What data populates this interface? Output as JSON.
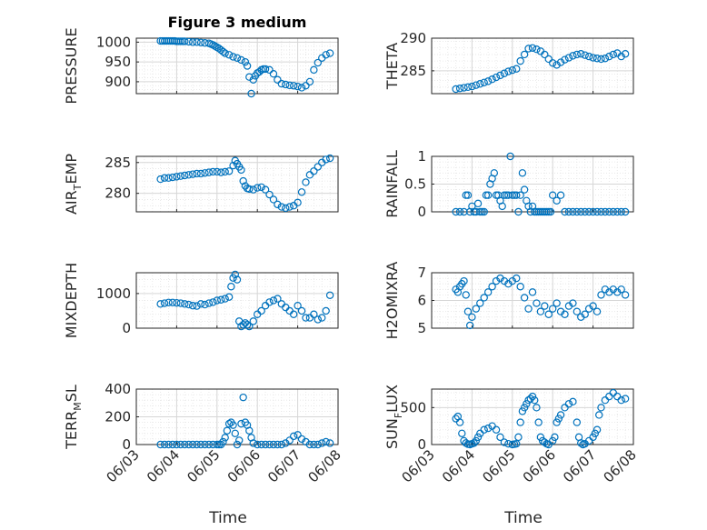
{
  "chart_data": [
    {
      "type": "scatter",
      "title": "Figure 3 medium",
      "ylabel": "PRESSURE",
      "xlim": [
        "06/03",
        "06/08"
      ],
      "ylim": [
        870,
        1010
      ],
      "yticks": [
        900,
        950,
        1000
      ],
      "xticklabels": [],
      "xlabel": "",
      "series": [
        {
          "x": [
            0.6,
            0.65,
            0.7,
            0.75,
            0.8,
            0.85,
            0.9,
            0.95,
            1.0,
            1.05,
            1.1,
            1.15,
            1.2,
            1.3,
            1.4,
            1.5,
            1.6,
            1.7,
            1.8,
            1.85,
            1.9,
            1.95,
            2.0,
            2.05,
            2.1,
            2.15,
            2.2,
            2.3,
            2.4,
            2.5,
            2.6,
            2.7,
            2.75,
            2.8,
            2.85,
            2.9,
            2.95,
            3.0,
            3.05,
            3.1,
            3.15,
            3.2,
            3.3,
            3.4,
            3.5,
            3.6,
            3.7,
            3.8,
            3.9,
            4.0,
            4.1,
            4.2,
            4.3,
            4.4,
            4.5,
            4.6,
            4.7,
            4.8
          ],
          "y": [
            1003,
            1003,
            1003,
            1003,
            1003,
            1003,
            1003,
            1003,
            1002,
            1002,
            1002,
            1002,
            1002,
            1001,
            1000,
            1000,
            999,
            998,
            997,
            995,
            993,
            990,
            987,
            984,
            980,
            976,
            972,
            968,
            963,
            960,
            955,
            950,
            940,
            912,
            870,
            905,
            915,
            922,
            925,
            930,
            932,
            932,
            930,
            920,
            905,
            895,
            893,
            891,
            890,
            888,
            885,
            890,
            900,
            930,
            948,
            960,
            968,
            972
          ]
        }
      ]
    },
    {
      "type": "scatter",
      "ylabel": "THETA",
      "xlim": [
        "06/03",
        "06/08"
      ],
      "ylim": [
        281.5,
        290
      ],
      "yticks": [
        285,
        290
      ],
      "xticklabels": [],
      "xlabel": "",
      "series": [
        {
          "x": [
            0.6,
            0.7,
            0.8,
            0.9,
            1.0,
            1.1,
            1.2,
            1.3,
            1.4,
            1.5,
            1.6,
            1.7,
            1.8,
            1.9,
            2.0,
            2.1,
            2.2,
            2.3,
            2.4,
            2.5,
            2.6,
            2.7,
            2.8,
            2.9,
            3.0,
            3.1,
            3.2,
            3.3,
            3.4,
            3.5,
            3.6,
            3.7,
            3.8,
            3.9,
            4.0,
            4.1,
            4.2,
            4.3,
            4.4,
            4.5,
            4.6,
            4.7,
            4.8
          ],
          "y": [
            282.2,
            282.3,
            282.4,
            282.5,
            282.6,
            282.8,
            283.0,
            283.2,
            283.4,
            283.7,
            284.0,
            284.3,
            284.6,
            284.9,
            285.1,
            285.3,
            286.5,
            287.5,
            288.4,
            288.5,
            288.3,
            288.0,
            287.5,
            286.8,
            286.2,
            285.9,
            286.3,
            286.7,
            287.0,
            287.3,
            287.5,
            287.6,
            287.4,
            287.2,
            287.0,
            286.9,
            286.8,
            286.9,
            287.2,
            287.5,
            287.7,
            287.2,
            287.6
          ]
        }
      ]
    },
    {
      "type": "scatter",
      "ylabel": "AIR_TEMP",
      "xlim": [
        "06/03",
        "06/08"
      ],
      "ylim": [
        277,
        286
      ],
      "yticks": [
        280,
        285
      ],
      "xticklabels": [],
      "xlabel": "",
      "series": [
        {
          "x": [
            0.6,
            0.7,
            0.8,
            0.9,
            1.0,
            1.1,
            1.2,
            1.3,
            1.4,
            1.5,
            1.6,
            1.7,
            1.8,
            1.9,
            2.0,
            2.1,
            2.2,
            2.3,
            2.4,
            2.45,
            2.5,
            2.55,
            2.6,
            2.65,
            2.7,
            2.75,
            2.8,
            2.9,
            3.0,
            3.1,
            3.2,
            3.3,
            3.4,
            3.5,
            3.6,
            3.7,
            3.8,
            3.9,
            4.0,
            4.1,
            4.2,
            4.3,
            4.4,
            4.5,
            4.6,
            4.7,
            4.8
          ],
          "y": [
            282.3,
            282.5,
            282.5,
            282.6,
            282.7,
            282.8,
            282.9,
            283.0,
            283.1,
            283.2,
            283.2,
            283.3,
            283.4,
            283.5,
            283.5,
            283.4,
            283.5,
            283.6,
            284.5,
            285.3,
            284.8,
            284.3,
            283.8,
            282.0,
            281.2,
            280.8,
            280.7,
            280.6,
            280.9,
            281.0,
            280.6,
            279.8,
            279.0,
            278.2,
            277.8,
            277.6,
            277.8,
            278.0,
            278.5,
            280.2,
            281.8,
            283.0,
            283.6,
            284.3,
            285.0,
            285.5,
            285.7
          ]
        }
      ]
    },
    {
      "type": "scatter",
      "ylabel": "RAINFALL",
      "xlim": [
        "06/03",
        "06/08"
      ],
      "ylim": [
        0,
        1
      ],
      "yticks": [
        0,
        0.5,
        1
      ],
      "xticklabels": [],
      "xlabel": "",
      "series": [
        {
          "x": [
            0.6,
            0.7,
            0.8,
            0.85,
            0.9,
            0.95,
            1.0,
            1.05,
            1.1,
            1.15,
            1.2,
            1.25,
            1.3,
            1.35,
            1.4,
            1.45,
            1.5,
            1.55,
            1.6,
            1.65,
            1.7,
            1.75,
            1.8,
            1.85,
            1.9,
            1.95,
            2.0,
            2.05,
            2.1,
            2.15,
            2.2,
            2.25,
            2.3,
            2.35,
            2.4,
            2.45,
            2.5,
            2.55,
            2.6,
            2.65,
            2.7,
            2.75,
            2.8,
            2.85,
            2.9,
            2.95,
            3.0,
            3.1,
            3.2,
            3.3,
            3.4,
            3.5,
            3.6,
            3.7,
            3.8,
            3.9,
            4.0,
            4.1,
            4.2,
            4.3,
            4.4,
            4.5,
            4.6,
            4.7,
            4.8
          ],
          "y": [
            0,
            0,
            0,
            0.3,
            0.3,
            0,
            0.1,
            0,
            0,
            0.15,
            0,
            0,
            0,
            0.3,
            0.3,
            0.5,
            0.6,
            0.7,
            0.3,
            0.3,
            0.2,
            0.1,
            0.3,
            0.3,
            0.3,
            1.0,
            0.3,
            0.3,
            0.3,
            0,
            0.3,
            0.7,
            0.4,
            0.2,
            0.1,
            0,
            0.1,
            0,
            0,
            0,
            0,
            0,
            0,
            0,
            0,
            0,
            0.3,
            0.2,
            0.3,
            0,
            0,
            0,
            0,
            0,
            0,
            0,
            0,
            0,
            0,
            0,
            0,
            0,
            0,
            0,
            0
          ]
        }
      ]
    },
    {
      "type": "scatter",
      "ylabel": "MIXDEPTH",
      "xlim": [
        "06/03",
        "06/08"
      ],
      "ylim": [
        0,
        1600
      ],
      "yticks": [
        0,
        1000
      ],
      "xticklabels": [],
      "xlabel": "",
      "series": [
        {
          "x": [
            0.6,
            0.7,
            0.8,
            0.9,
            1.0,
            1.1,
            1.2,
            1.3,
            1.4,
            1.5,
            1.6,
            1.7,
            1.8,
            1.9,
            2.0,
            2.1,
            2.2,
            2.3,
            2.35,
            2.4,
            2.45,
            2.5,
            2.55,
            2.6,
            2.65,
            2.7,
            2.75,
            2.8,
            2.9,
            3.0,
            3.1,
            3.2,
            3.3,
            3.4,
            3.5,
            3.6,
            3.7,
            3.8,
            3.9,
            4.0,
            4.1,
            4.2,
            4.3,
            4.4,
            4.5,
            4.6,
            4.7,
            4.8
          ],
          "y": [
            700,
            720,
            740,
            740,
            730,
            720,
            700,
            680,
            650,
            640,
            700,
            680,
            720,
            750,
            800,
            820,
            850,
            900,
            1200,
            1450,
            1550,
            1400,
            200,
            50,
            100,
            150,
            100,
            50,
            200,
            400,
            500,
            650,
            750,
            800,
            850,
            700,
            600,
            500,
            400,
            650,
            500,
            300,
            300,
            400,
            250,
            300,
            500,
            950
          ]
        }
      ]
    },
    {
      "type": "scatter",
      "ylabel": "H2OMIXRA",
      "xlim": [
        "06/03",
        "06/08"
      ],
      "ylim": [
        5,
        7
      ],
      "yticks": [
        5,
        6,
        7
      ],
      "xticklabels": [],
      "xlabel": "",
      "series": [
        {
          "x": [
            0.6,
            0.65,
            0.7,
            0.75,
            0.8,
            0.85,
            0.9,
            0.95,
            1.0,
            1.1,
            1.2,
            1.3,
            1.4,
            1.5,
            1.6,
            1.7,
            1.8,
            1.9,
            2.0,
            2.1,
            2.2,
            2.3,
            2.4,
            2.5,
            2.6,
            2.7,
            2.8,
            2.9,
            3.0,
            3.1,
            3.2,
            3.3,
            3.4,
            3.5,
            3.6,
            3.7,
            3.8,
            3.9,
            4.0,
            4.1,
            4.2,
            4.3,
            4.4,
            4.5,
            4.6,
            4.7,
            4.8
          ],
          "y": [
            6.4,
            6.3,
            6.5,
            6.6,
            6.7,
            6.2,
            5.6,
            5.1,
            5.4,
            5.7,
            5.9,
            6.1,
            6.3,
            6.5,
            6.7,
            6.8,
            6.7,
            6.6,
            6.7,
            6.8,
            6.5,
            6.1,
            5.7,
            6.3,
            5.9,
            5.6,
            5.8,
            5.5,
            5.7,
            5.9,
            5.6,
            5.5,
            5.8,
            5.9,
            5.6,
            5.4,
            5.5,
            5.7,
            5.8,
            5.6,
            6.2,
            6.4,
            6.3,
            6.4,
            6.3,
            6.4,
            6.2
          ]
        }
      ]
    },
    {
      "type": "scatter",
      "ylabel": "TERR_MSL",
      "xlim": [
        "06/03",
        "06/08"
      ],
      "ylim": [
        0,
        400
      ],
      "yticks": [
        0,
        200,
        400
      ],
      "xticklabels": [
        "06/03",
        "06/04",
        "06/05",
        "06/06",
        "06/07",
        "06/08"
      ],
      "xlabel": "Time",
      "series": [
        {
          "x": [
            0.6,
            0.7,
            0.8,
            0.9,
            1.0,
            1.1,
            1.2,
            1.3,
            1.4,
            1.5,
            1.6,
            1.7,
            1.8,
            1.9,
            2.0,
            2.05,
            2.1,
            2.15,
            2.2,
            2.25,
            2.3,
            2.35,
            2.4,
            2.45,
            2.5,
            2.55,
            2.6,
            2.65,
            2.7,
            2.75,
            2.8,
            2.85,
            2.9,
            3.0,
            3.1,
            3.2,
            3.3,
            3.4,
            3.5,
            3.6,
            3.7,
            3.8,
            3.9,
            4.0,
            4.1,
            4.2,
            4.3,
            4.4,
            4.5,
            4.6,
            4.7,
            4.8
          ],
          "y": [
            0,
            0,
            0,
            0,
            0,
            0,
            0,
            0,
            0,
            0,
            0,
            0,
            0,
            0,
            0,
            0,
            0,
            20,
            50,
            100,
            150,
            160,
            140,
            80,
            0,
            30,
            150,
            340,
            160,
            140,
            100,
            50,
            10,
            0,
            0,
            0,
            0,
            0,
            0,
            0,
            10,
            30,
            60,
            70,
            40,
            20,
            0,
            0,
            0,
            10,
            20,
            10
          ]
        }
      ]
    },
    {
      "type": "scatter",
      "ylabel": "SUN_FLUX",
      "xlim": [
        "06/03",
        "06/08"
      ],
      "ylim": [
        0,
        750
      ],
      "yticks": [
        0,
        500
      ],
      "xticklabels": [
        "06/03",
        "06/04",
        "06/05",
        "06/06",
        "06/07",
        "06/08"
      ],
      "xlabel": "Time",
      "series": [
        {
          "x": [
            0.6,
            0.65,
            0.7,
            0.75,
            0.8,
            0.85,
            0.9,
            0.95,
            1.0,
            1.05,
            1.1,
            1.15,
            1.2,
            1.3,
            1.4,
            1.5,
            1.6,
            1.7,
            1.8,
            1.9,
            2.0,
            2.05,
            2.1,
            2.15,
            2.2,
            2.25,
            2.3,
            2.35,
            2.4,
            2.45,
            2.5,
            2.55,
            2.6,
            2.65,
            2.7,
            2.75,
            2.8,
            2.85,
            2.9,
            3.0,
            3.05,
            3.1,
            3.15,
            3.2,
            3.3,
            3.4,
            3.5,
            3.6,
            3.65,
            3.7,
            3.75,
            3.8,
            3.9,
            4.0,
            4.05,
            4.1,
            4.15,
            4.2,
            4.3,
            4.4,
            4.5,
            4.6,
            4.7,
            4.8
          ],
          "y": [
            350,
            380,
            300,
            150,
            50,
            20,
            5,
            0,
            10,
            20,
            50,
            100,
            150,
            200,
            220,
            250,
            200,
            100,
            30,
            10,
            0,
            5,
            10,
            100,
            300,
            450,
            500,
            550,
            600,
            620,
            650,
            600,
            500,
            300,
            100,
            50,
            30,
            10,
            0,
            50,
            100,
            300,
            350,
            400,
            500,
            550,
            580,
            300,
            100,
            20,
            0,
            10,
            50,
            100,
            150,
            200,
            400,
            500,
            600,
            650,
            700,
            650,
            600,
            620
          ]
        }
      ]
    }
  ]
}
